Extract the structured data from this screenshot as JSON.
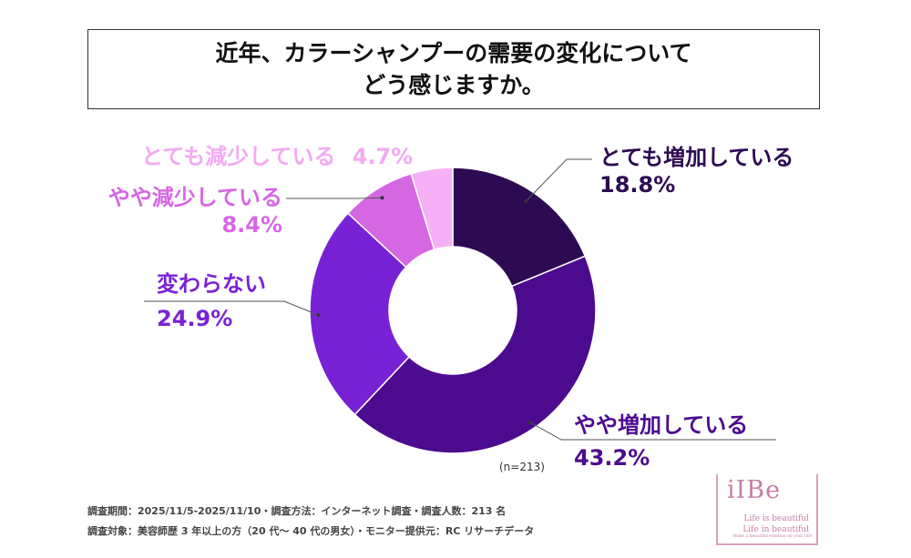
{
  "title": {
    "line1": "近年、カラーシャンプーの需要の変化について",
    "line2": "どう感じますか。"
  },
  "chart_data": {
    "type": "pie",
    "donut": true,
    "categories": [
      "とても増加している",
      "やや増加している",
      "変わらない",
      "やや減少している",
      "とても減少している"
    ],
    "values": [
      18.8,
      43.2,
      24.9,
      8.4,
      4.7
    ],
    "value_labels": [
      "18.8%",
      "43.2%",
      "24.9%",
      "8.4%",
      "4.7%"
    ],
    "colors": [
      "#2d0b52",
      "#4c0b8e",
      "#7822d6",
      "#d667e3",
      "#f6b1f6"
    ],
    "label_colors": [
      "#2d0b52",
      "#4c0b8e",
      "#7a22d6",
      "#d667e3",
      "#f3aaf3"
    ],
    "n_label": "(n=213)"
  },
  "footer": {
    "line1": "調査期間：2025/11/5-2025/11/10・調査方法：インターネット調査・調査人数：213 名",
    "line2": "調査対象：美容師歴 3 年以上の方（20 代〜 40 代の男女）・モニター提供元：RC リサーチデータ"
  },
  "logo": {
    "main": "iIBe",
    "line1": "Life is beautiful",
    "line2": "Life in beautiful",
    "line3": "Make a beautiful emotion on your life!"
  }
}
